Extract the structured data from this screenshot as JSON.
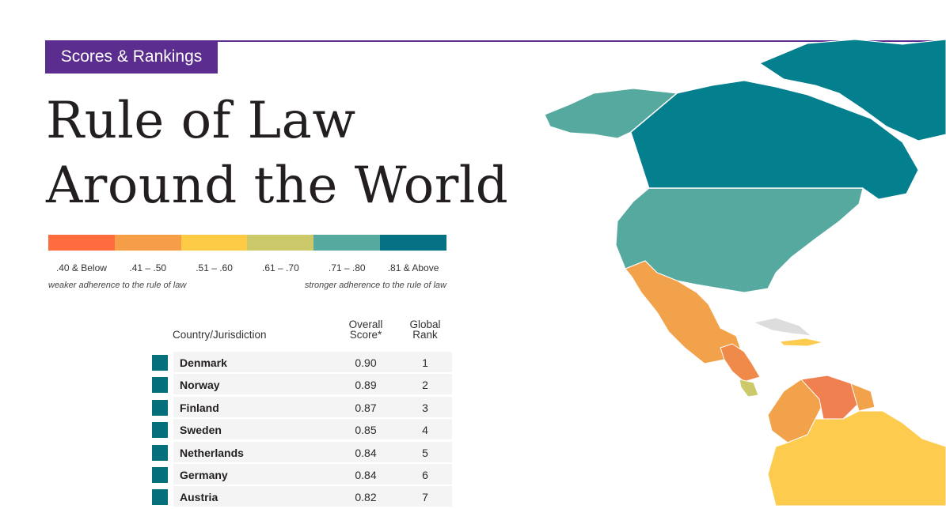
{
  "header": {
    "section_label": "Scores & Rankings",
    "title_line1": "Rule of Law",
    "title_line2": "Around the World"
  },
  "legend": {
    "bins": [
      {
        "label": ".40 & Below",
        "color": "#ff6c3d"
      },
      {
        "label": ".41 – .50",
        "color": "#f59e47"
      },
      {
        "label": ".51 – .60",
        "color": "#fdcb45"
      },
      {
        "label": ".61 – .70",
        "color": "#cbc96a"
      },
      {
        "label": ".71 – .80",
        "color": "#56a99f"
      },
      {
        "label": ".81 & Above",
        "color": "#057183"
      }
    ],
    "weaker_note": "weaker adherence to the rule of law",
    "stronger_note": "stronger adherence to the rule of law"
  },
  "table": {
    "col_country": "Country/Jurisdiction",
    "col_score": "Overall Score*",
    "col_rank": "Global Rank",
    "swatch_color": "#056f7c"
  },
  "chart_data": {
    "type": "table",
    "columns": [
      "Country/Jurisdiction",
      "Overall Score*",
      "Global Rank"
    ],
    "rows": [
      {
        "country": "Denmark",
        "score": "0.90",
        "rank": "1"
      },
      {
        "country": "Norway",
        "score": "0.89",
        "rank": "2"
      },
      {
        "country": "Finland",
        "score": "0.87",
        "rank": "3"
      },
      {
        "country": "Sweden",
        "score": "0.85",
        "rank": "4"
      },
      {
        "country": "Netherlands",
        "score": "0.84",
        "rank": "5"
      },
      {
        "country": "Germany",
        "score": "0.84",
        "rank": "6"
      },
      {
        "country": "Austria",
        "score": "0.82",
        "rank": "7"
      }
    ]
  },
  "map": {
    "regions": [
      {
        "name": "canada-region",
        "color": "#047f8e"
      },
      {
        "name": "alaska-region",
        "color": "#56a99f"
      },
      {
        "name": "usa-region",
        "color": "#56a99f"
      },
      {
        "name": "mexico-region",
        "color": "#f3a24c"
      },
      {
        "name": "central-america-region",
        "color": "#f08a4a"
      },
      {
        "name": "costa-rica-region",
        "color": "#cbc96a"
      },
      {
        "name": "colombia-region",
        "color": "#f3a24c"
      },
      {
        "name": "venezuela-region",
        "color": "#f08050"
      },
      {
        "name": "guyana-region",
        "color": "#f3a24c"
      },
      {
        "name": "brazil-region",
        "color": "#fdcb4e"
      },
      {
        "name": "cuba-region",
        "color": "#dddddd"
      },
      {
        "name": "caribbean-islands-region",
        "color": "#fdcb4e"
      },
      {
        "name": "greenland-region",
        "color": "#047f8e"
      }
    ]
  }
}
